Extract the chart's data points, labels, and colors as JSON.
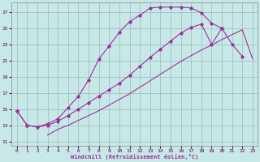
{
  "xlabel": "Windchill (Refroidissement éolien,°C)",
  "bg_color": "#c8e8e8",
  "grid_color": "#99bbbb",
  "line_color": "#993399",
  "xlim": [
    -0.5,
    23.5
  ],
  "ylim": [
    10.5,
    28.2
  ],
  "xticks": [
    0,
    1,
    2,
    3,
    4,
    5,
    6,
    7,
    8,
    9,
    10,
    11,
    12,
    13,
    14,
    15,
    16,
    17,
    18,
    19,
    20,
    21,
    22,
    23
  ],
  "yticks": [
    11,
    13,
    15,
    17,
    19,
    21,
    23,
    25,
    27
  ],
  "curve1_x": [
    0,
    1,
    2,
    3,
    4,
    5,
    6,
    7,
    8,
    9,
    10,
    11,
    12,
    13,
    14,
    15,
    16,
    17,
    18,
    19,
    20,
    21,
    22
  ],
  "curve1_y": [
    14.8,
    13.0,
    12.8,
    13.2,
    13.8,
    15.2,
    16.6,
    18.6,
    21.2,
    22.8,
    24.5,
    25.8,
    26.6,
    27.5,
    27.6,
    27.6,
    27.6,
    27.5,
    26.9,
    25.6,
    25.0,
    23.0,
    21.5
  ],
  "curve2_x": [
    0,
    1,
    2,
    3,
    4,
    5,
    6,
    7,
    8,
    9,
    10,
    11,
    12,
    13,
    14,
    15,
    16,
    17,
    18,
    19,
    20
  ],
  "curve2_y": [
    14.8,
    13.0,
    12.8,
    13.0,
    13.5,
    14.2,
    15.0,
    15.8,
    16.6,
    17.4,
    18.2,
    19.2,
    20.3,
    21.4,
    22.4,
    23.4,
    24.4,
    25.1,
    25.5,
    23.0,
    25.0
  ],
  "curve3_x": [
    3,
    4,
    5,
    6,
    7,
    8,
    9,
    10,
    11,
    12,
    13,
    14,
    15,
    16,
    17,
    18,
    19,
    20,
    21,
    22,
    23
  ],
  "curve3_y": [
    11.8,
    12.5,
    13.0,
    13.6,
    14.2,
    14.8,
    15.5,
    16.2,
    16.9,
    17.7,
    18.5,
    19.3,
    20.1,
    20.9,
    21.6,
    22.3,
    22.9,
    23.6,
    24.2,
    24.8,
    21.2
  ]
}
